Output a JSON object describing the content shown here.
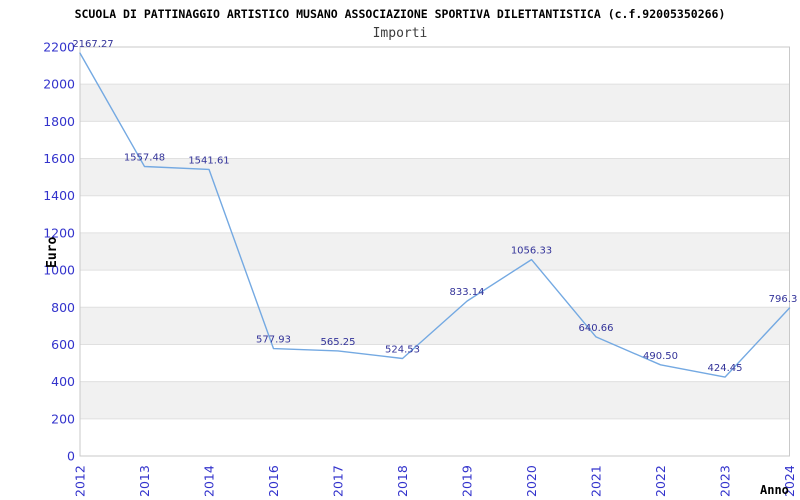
{
  "header": {
    "title": "SCUOLA DI PATTINAGGIO ARTISTICO MUSANO ASSOCIAZIONE SPORTIVA DILETTANTISTICA (c.f.92005350266)",
    "subtitle": "Importi"
  },
  "chart_data": {
    "type": "line",
    "title": "Importi",
    "categories": [
      "2012",
      "2013",
      "2014",
      "2016",
      "2017",
      "2018",
      "2019",
      "2020",
      "2021",
      "2022",
      "2023",
      "2024"
    ],
    "series": [
      {
        "name": "Importi",
        "values": [
          2167.27,
          1557.48,
          1541.61,
          577.93,
          565.25,
          524.53,
          833.14,
          1056.33,
          640.66,
          490.5,
          424.45,
          796.3
        ],
        "value_labels": [
          "2167.27",
          "1557.48",
          "1541.61",
          "577.93",
          "565.25",
          "524.53",
          "833.14",
          "1056.33",
          "640.66",
          "490.50",
          "424.45",
          "796.3"
        ]
      }
    ],
    "xlabel": "Anno",
    "ylabel": "Euro",
    "ylim": [
      0,
      2200
    ],
    "ytick_step": 200,
    "ytick_labels": [
      "0",
      "200",
      "400",
      "600",
      "800",
      "1000",
      "1200",
      "1400",
      "1600",
      "1800",
      "2000",
      "2200"
    ],
    "grid": true,
    "legend_position": "none",
    "plot_bands_alternating": true,
    "colors": {
      "line": "#74a9e2",
      "data_label": "#333399",
      "tick_label": "#3333cc",
      "band_fill": "#f1f1f1",
      "gridline": "#e0e0e0",
      "plot_border": "#c9c9c9",
      "axis_title": "#000000",
      "background": "#ffffff"
    }
  }
}
